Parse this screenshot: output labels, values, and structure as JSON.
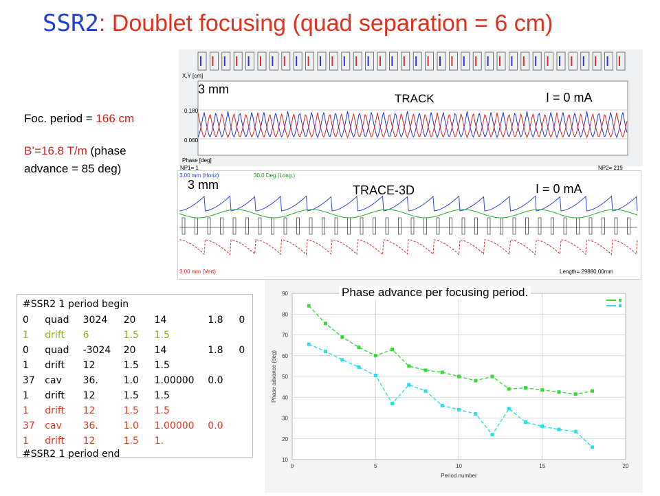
{
  "title": {
    "prefix": "SSR2",
    "rest": ": Doublet focusing (quad separation  = 6 cm)"
  },
  "notes": {
    "foc_label": "Foc. period = ",
    "foc_value": "166 cm",
    "grad_value": "B’=16.8 T/m",
    "grad_rest": " (phase",
    "phase_line": "advance = 85 deg)"
  },
  "track_panel": {
    "scale": "3 mm",
    "code": "TRACK",
    "current": "I = 0 mA",
    "yticks": [
      "0.180",
      "0.060"
    ],
    "axis_label": "X,Y [cm]",
    "phase_label": "Phase [deg]",
    "np1": "NP1=   1",
    "np2": "NP2= 219"
  },
  "trace_panel": {
    "scale": "3 mm",
    "code": "TRACE-3D",
    "current": "I = 0 mA",
    "horiz": "3.00 mm (Horiz)",
    "long": "30.0 Deg (Long.)",
    "vert": "3.00 mm (Vert)",
    "length": "Length= 29880.00mm"
  },
  "code_block": {
    "header": "#SSR2 1 period begin",
    "footer": "#SSR2 1 period end",
    "rows": [
      {
        "c": [
          "0",
          "quad",
          "3024",
          "20",
          "14",
          "1.8",
          "0"
        ],
        "color": "k"
      },
      {
        "c": [
          "1",
          "drift",
          "6",
          "1.5",
          "1.5",
          "",
          ""
        ],
        "color": "g"
      },
      {
        "c": [
          "0",
          "quad",
          "-3024",
          "20",
          "14",
          "1.8",
          "0"
        ],
        "color": "k"
      },
      {
        "c": [
          "1",
          "drift",
          "12",
          "1.5",
          "1.5",
          "",
          ""
        ],
        "color": "k"
      },
      {
        "c": [
          "37",
          "cav",
          "36.",
          "1.0",
          "1.00000",
          "0.0",
          ""
        ],
        "color": "k"
      },
      {
        "c": [
          "1",
          "drift",
          "12",
          "1.5",
          "1.5",
          "",
          ""
        ],
        "color": "k"
      },
      {
        "c": [
          "1",
          "drift",
          "12",
          "1.5",
          "1.5",
          "",
          ""
        ],
        "color": "r"
      },
      {
        "c": [
          "37",
          "cav",
          "36.",
          "1.0",
          "1.00000",
          "0.0",
          ""
        ],
        "color": "r"
      },
      {
        "c": [
          "1",
          "drift",
          "12",
          "1.5",
          "1. ",
          "",
          ""
        ],
        "color": "r"
      }
    ]
  },
  "chart_data": {
    "type": "line",
    "title": "Phase advance per focusing period.",
    "xlabel": "Period number",
    "ylabel": "Phase advance (deg)",
    "xlim": [
      0,
      20
    ],
    "ylim": [
      10,
      90
    ],
    "xticks": [
      0,
      5,
      10,
      15,
      20
    ],
    "yticks": [
      10,
      20,
      30,
      40,
      50,
      60,
      70,
      80,
      90
    ],
    "series": [
      {
        "color": "#33dd33",
        "x": [
          1,
          2,
          3,
          4,
          5,
          6,
          7,
          8,
          9,
          10,
          11,
          12,
          13,
          14,
          15,
          16,
          17,
          18
        ],
        "values": [
          84,
          75.5,
          69,
          64,
          60,
          63,
          55,
          53,
          52,
          50,
          48,
          50,
          44,
          44.5,
          43.5,
          42.5,
          41.5,
          43
        ]
      },
      {
        "color": "#22e0e8",
        "x": [
          1,
          2,
          3,
          4,
          5,
          6,
          7,
          8,
          9,
          10,
          11,
          12,
          13,
          14,
          15,
          16,
          17,
          18
        ],
        "values": [
          65.5,
          62,
          58,
          54.5,
          50.5,
          37,
          46,
          43,
          36,
          34,
          32,
          22,
          34.5,
          28,
          26,
          24.5,
          23.5,
          16
        ]
      }
    ]
  }
}
